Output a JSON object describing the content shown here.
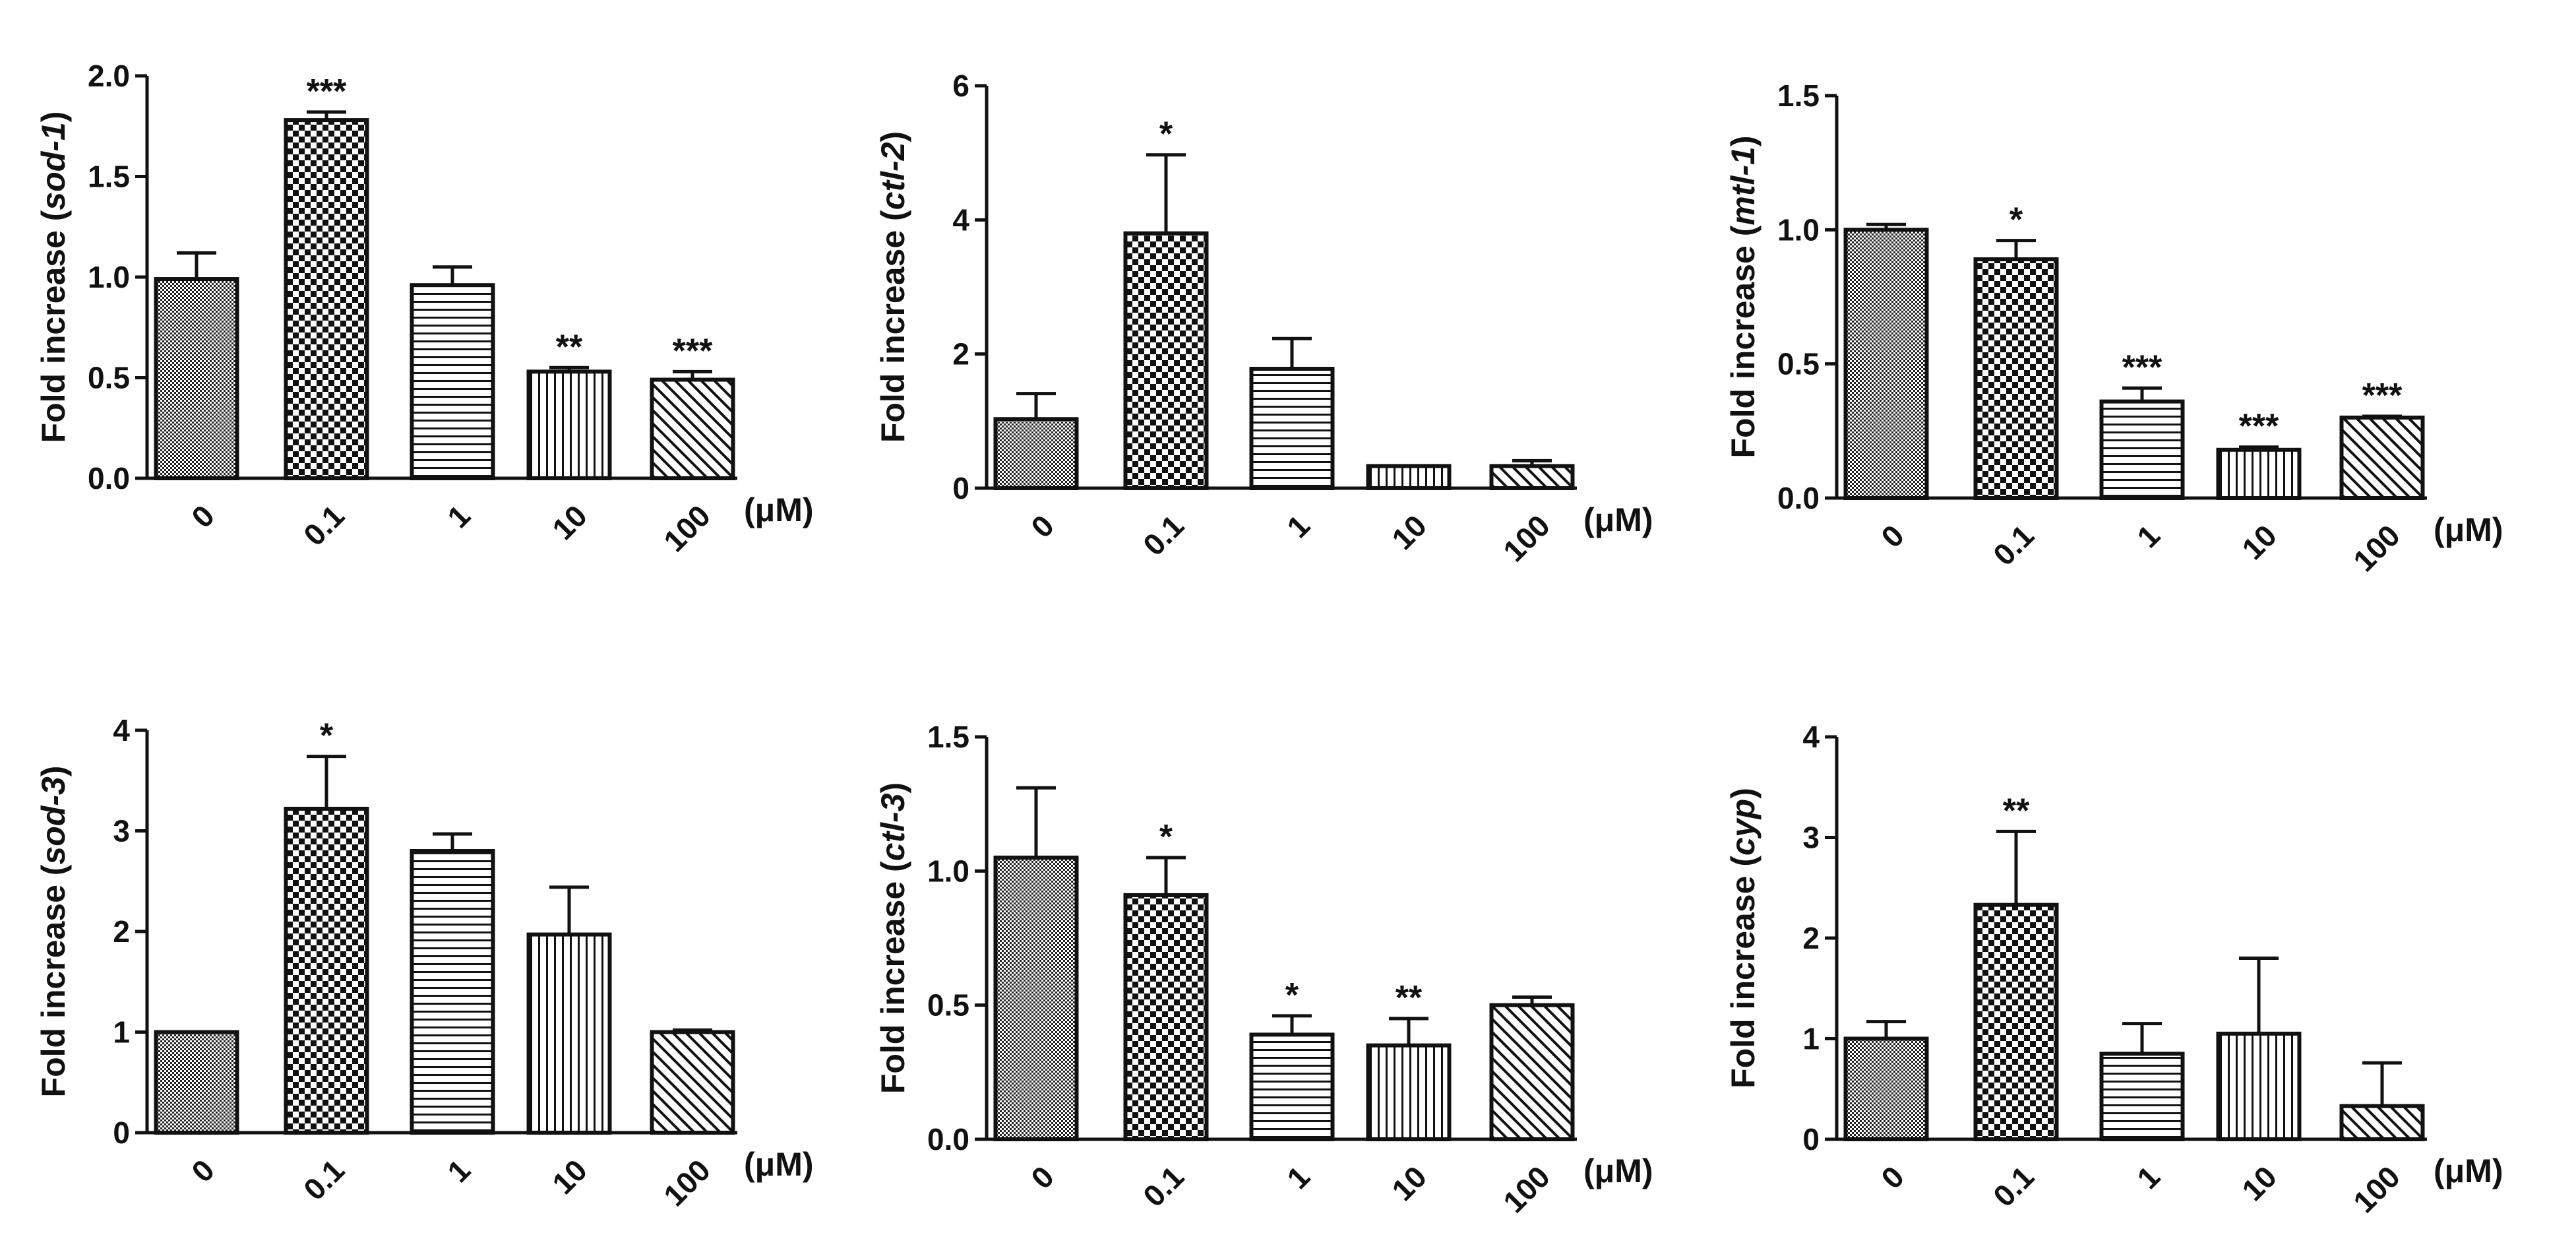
{
  "chart_data": [
    {
      "type": "bar",
      "gene": "sod-1",
      "ylabel_prefix": "Fold increase (",
      "ylabel_suffix": ")",
      "categories": [
        "0",
        "0.1",
        "1",
        "10",
        "100"
      ],
      "unit": "(μM)",
      "values": [
        0.99,
        1.78,
        0.96,
        0.53,
        0.49
      ],
      "errors": [
        0.13,
        0.04,
        0.09,
        0.02,
        0.04
      ],
      "significance": [
        "",
        "***",
        "",
        "**",
        "***"
      ],
      "ylim": [
        0,
        2.0
      ],
      "yticks": [
        "0.0",
        "0.5",
        "1.0",
        "1.5",
        "2.0"
      ],
      "patterns": [
        "dense",
        "checker",
        "hstripe",
        "vstripe",
        "diag"
      ]
    },
    {
      "type": "bar",
      "gene": "ctl-2",
      "ylabel_prefix": "Fold increase (",
      "ylabel_suffix": ")",
      "categories": [
        "0",
        "0.1",
        "1",
        "10",
        "100"
      ],
      "unit": "(μM)",
      "values": [
        1.03,
        3.8,
        1.78,
        0.33,
        0.33
      ],
      "errors": [
        0.38,
        1.17,
        0.45,
        0.0,
        0.08
      ],
      "significance": [
        "",
        "*",
        "",
        "",
        ""
      ],
      "ylim": [
        0,
        6
      ],
      "yticks": [
        "0",
        "2",
        "4",
        "6"
      ],
      "patterns": [
        "dense",
        "checker",
        "hstripe",
        "vstripe",
        "diag"
      ]
    },
    {
      "type": "bar",
      "gene": "mtl-1",
      "ylabel_prefix": "Fold increase (",
      "ylabel_suffix": ")",
      "categories": [
        "0",
        "0.1",
        "1",
        "10",
        "100"
      ],
      "unit": "(μM)",
      "values": [
        1.0,
        0.89,
        0.36,
        0.18,
        0.3
      ],
      "errors": [
        0.02,
        0.07,
        0.05,
        0.01,
        0.005
      ],
      "significance": [
        "",
        "*",
        "***",
        "***",
        "***"
      ],
      "ylim": [
        0,
        1.5
      ],
      "yticks": [
        "0.0",
        "0.5",
        "1.0",
        "1.5"
      ],
      "patterns": [
        "dense",
        "checker",
        "hstripe",
        "vstripe",
        "diag"
      ]
    },
    {
      "type": "bar",
      "gene": "sod-3",
      "ylabel_prefix": "Fold increase (",
      "ylabel_suffix": ")",
      "categories": [
        "0",
        "0.1",
        "1",
        "10",
        "100"
      ],
      "unit": "(μM)",
      "values": [
        1.0,
        3.22,
        2.8,
        1.97,
        1.0
      ],
      "errors": [
        0.0,
        0.52,
        0.17,
        0.47,
        0.02
      ],
      "significance": [
        "",
        "*",
        "",
        "",
        ""
      ],
      "ylim": [
        0,
        4
      ],
      "yticks": [
        "0",
        "1",
        "2",
        "3",
        "4"
      ],
      "patterns": [
        "dense",
        "checker",
        "hstripe",
        "vstripe",
        "diag"
      ]
    },
    {
      "type": "bar",
      "gene": "ctl-3",
      "ylabel_prefix": "Fold increase (",
      "ylabel_suffix": ")",
      "categories": [
        "0",
        "0.1",
        "1",
        "10",
        "100"
      ],
      "unit": "(μM)",
      "values": [
        1.05,
        0.91,
        0.39,
        0.35,
        0.5
      ],
      "errors": [
        0.26,
        0.14,
        0.07,
        0.1,
        0.03
      ],
      "significance": [
        "",
        "*",
        "*",
        "**",
        ""
      ],
      "ylim": [
        0,
        1.5
      ],
      "yticks": [
        "0.0",
        "0.5",
        "1.0",
        "1.5"
      ],
      "patterns": [
        "dense",
        "checker",
        "hstripe",
        "vstripe",
        "diag"
      ]
    },
    {
      "type": "bar",
      "gene": "cyp",
      "ylabel_prefix": "Fold increase (",
      "ylabel_suffix": ")",
      "categories": [
        "0",
        "0.1",
        "1",
        "10",
        "100"
      ],
      "unit": "(μM)",
      "values": [
        1.0,
        2.33,
        0.85,
        1.05,
        0.33
      ],
      "errors": [
        0.17,
        0.73,
        0.3,
        0.75,
        0.43
      ],
      "significance": [
        "",
        "**",
        "",
        "",
        ""
      ],
      "ylim": [
        0,
        4
      ],
      "yticks": [
        "0",
        "1",
        "2",
        "3",
        "4"
      ],
      "patterns": [
        "dense",
        "checker",
        "hstripe",
        "vstripe",
        "diag"
      ]
    }
  ]
}
